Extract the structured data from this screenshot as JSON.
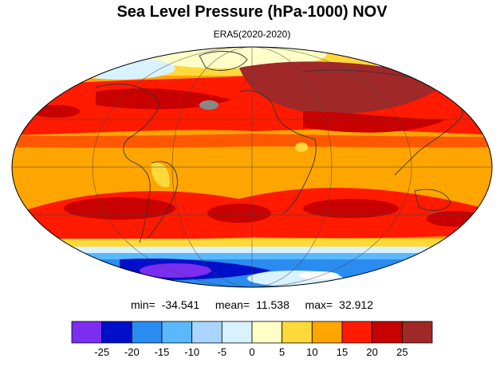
{
  "title": "Sea Level Pressure (hPa-1000) NOV",
  "subtitle": "ERA5(2020-2020)",
  "stats": {
    "min_label": "min=",
    "min": "-34.541",
    "mean_label": "mean=",
    "mean": "11.538",
    "max_label": "max=",
    "max": "32.912"
  },
  "colorbar": {
    "colors": [
      "#7b2df0",
      "#0010c8",
      "#2a8cf0",
      "#5ab8ff",
      "#a8d6ff",
      "#d8f2ff",
      "#ffffc8",
      "#ffd83a",
      "#ffa500",
      "#ff1a00",
      "#c80000",
      "#a02828"
    ],
    "ticks": [
      "-25",
      "-20",
      "-15",
      "-10",
      "-5",
      "0",
      "5",
      "10",
      "15",
      "20",
      "25"
    ]
  },
  "map": {
    "projection": "Mollweide",
    "bands_by_latitude": [
      {
        "lat_from": 90,
        "lat_to": 70,
        "value_class": "0 to 10"
      },
      {
        "lat_from": 70,
        "lat_to": 55,
        "value_class": "10 to 15"
      },
      {
        "lat_from": 55,
        "lat_to": 35,
        "value_class": "20 to 25"
      },
      {
        "lat_from": 35,
        "lat_to": 10,
        "value_class": "15 to 20"
      },
      {
        "lat_from": 10,
        "lat_to": -15,
        "value_class": "10 to 15"
      },
      {
        "lat_from": -15,
        "lat_to": -45,
        "value_class": "20 to 25"
      },
      {
        "lat_from": -45,
        "lat_to": -58,
        "value_class": "5 to 15"
      },
      {
        "lat_from": -58,
        "lat_to": -90,
        "value_class": "-35 to -10"
      }
    ]
  }
}
